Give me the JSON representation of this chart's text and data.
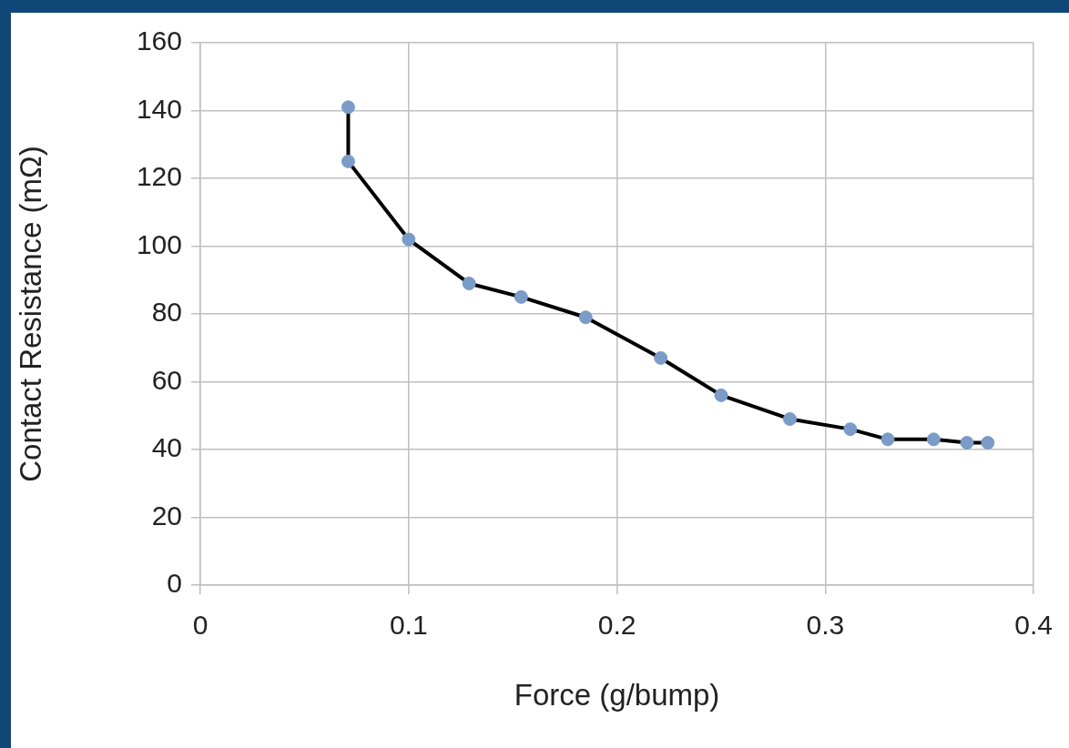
{
  "chart_data": {
    "type": "line",
    "xlabel": "Force (g/bump)",
    "ylabel": "Contact Resistance (mΩ)",
    "x": [
      0.071,
      0.071,
      0.1,
      0.129,
      0.154,
      0.185,
      0.221,
      0.25,
      0.283,
      0.312,
      0.33,
      0.352,
      0.368,
      0.378
    ],
    "series": [
      {
        "color": "#000000",
        "values": [
          141,
          125,
          102,
          89,
          85,
          79,
          67,
          56,
          49,
          46,
          43,
          43,
          42,
          42
        ]
      }
    ],
    "xlim": [
      0,
      0.4
    ],
    "xticks": [
      0,
      0.1,
      0.2,
      0.3,
      0.4
    ],
    "ylim": [
      0,
      160
    ],
    "yticks": [
      0,
      20,
      40,
      60,
      80,
      100,
      120,
      140,
      160
    ],
    "grid": true,
    "legend": false,
    "marker": "circle",
    "line_style": "solid"
  }
}
